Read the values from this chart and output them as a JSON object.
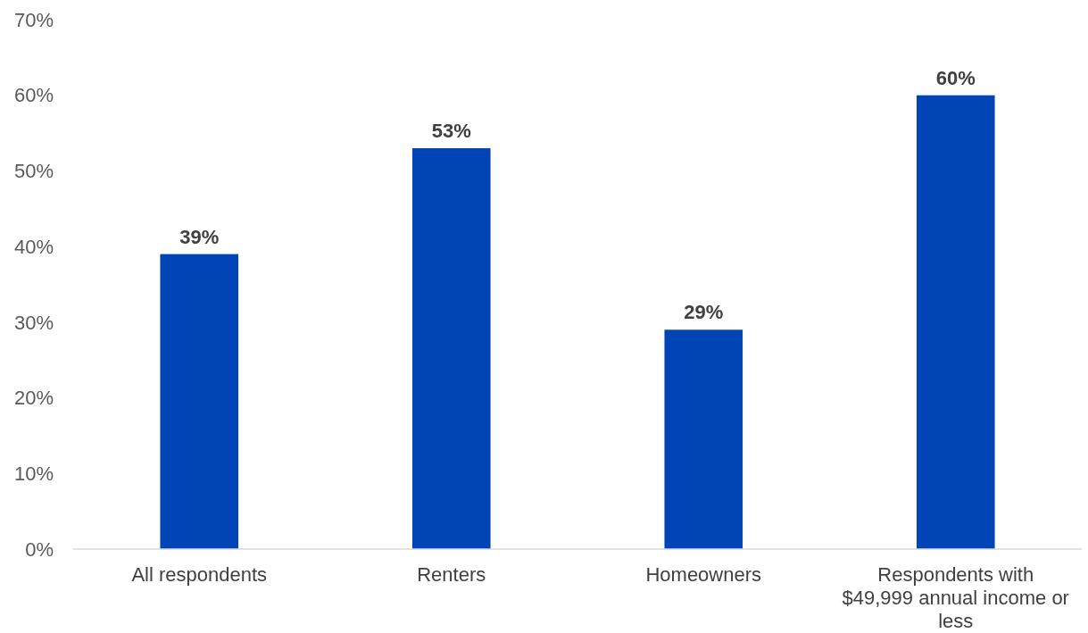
{
  "chart_data": {
    "type": "bar",
    "categories": [
      "All respondents",
      "Renters",
      "Homeowners",
      "Respondents with $49,999 annual income or less"
    ],
    "values": [
      39,
      53,
      29,
      60
    ],
    "value_labels": [
      "39%",
      "53%",
      "29%",
      "60%"
    ],
    "color": "#0044b5",
    "ylim": [
      0,
      70
    ],
    "yticks": [
      {
        "value": 0,
        "label": "0%"
      },
      {
        "value": 10,
        "label": "10%"
      },
      {
        "value": 20,
        "label": "20%"
      },
      {
        "value": 30,
        "label": "30%"
      },
      {
        "value": 40,
        "label": "40%"
      },
      {
        "value": 50,
        "label": "50%"
      },
      {
        "value": 60,
        "label": "60%"
      },
      {
        "value": 70,
        "label": "70%"
      }
    ],
    "grid": false
  }
}
